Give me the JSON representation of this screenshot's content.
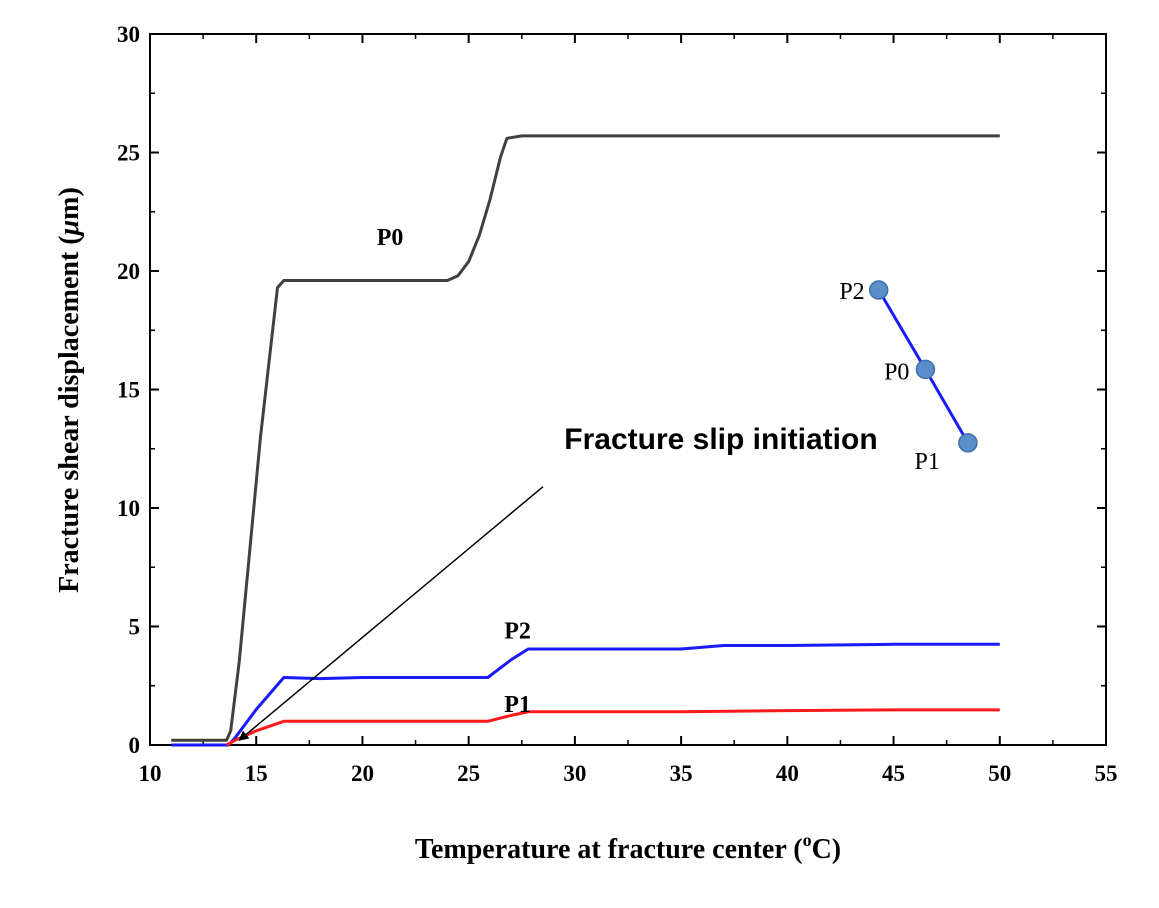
{
  "chart_data": {
    "type": "line",
    "title": "",
    "xlabel": "Temperature at fracture center (",
    "xlabel_sup": "o",
    "xlabel_tail": "C)",
    "ylabel_prefix": "Fracture shear displacement (",
    "ylabel_mu": "μ",
    "ylabel_suffix": "m)",
    "xlim": [
      10,
      55
    ],
    "ylim": [
      0,
      30
    ],
    "xticks": [
      "10",
      "15",
      "20",
      "25",
      "30",
      "35",
      "40",
      "45",
      "50",
      "55"
    ],
    "yticks": [
      "0",
      "5",
      "10",
      "15",
      "20",
      "25",
      "30"
    ],
    "grid": false,
    "series": [
      {
        "name": "P0",
        "color": "#404040",
        "x": [
          11,
          13.6,
          13.8,
          14.2,
          15.2,
          16.0,
          16.3,
          18,
          20,
          22,
          24,
          24.5,
          25,
          25.5,
          26,
          26.5,
          26.8,
          27.5,
          30,
          40,
          50
        ],
        "y": [
          0.2,
          0.2,
          0.6,
          3.5,
          13,
          19.3,
          19.6,
          19.6,
          19.6,
          19.6,
          19.6,
          19.8,
          20.4,
          21.5,
          23,
          24.8,
          25.6,
          25.7,
          25.7,
          25.7,
          25.7
        ]
      },
      {
        "name": "P2",
        "color": "#1a1aff",
        "x": [
          11,
          13.7,
          14.0,
          15,
          16.3,
          18,
          20,
          22,
          24,
          25.9,
          27,
          27.8,
          30,
          35,
          37,
          40,
          45,
          50
        ],
        "y": [
          0,
          0,
          0.3,
          1.5,
          2.85,
          2.8,
          2.85,
          2.85,
          2.85,
          2.85,
          3.6,
          4.05,
          4.05,
          4.05,
          4.2,
          4.2,
          4.25,
          4.25
        ]
      },
      {
        "name": "P1",
        "color": "#ff1a1a",
        "x": [
          13.6,
          14.0,
          15,
          16.3,
          18,
          20,
          22,
          24,
          25.9,
          27,
          27.8,
          30,
          35,
          40,
          45,
          50
        ],
        "y": [
          0,
          0.2,
          0.6,
          1.0,
          1.0,
          1.0,
          1.0,
          1.0,
          1.0,
          1.25,
          1.4,
          1.4,
          1.4,
          1.45,
          1.48,
          1.48
        ]
      }
    ],
    "series_labels": [
      {
        "text": "P0",
        "x": 21.3,
        "y": 21.1
      },
      {
        "text": "P2",
        "x": 27.3,
        "y": 4.5
      },
      {
        "text": "P1",
        "x": 27.3,
        "y": 1.4
      }
    ],
    "inset": {
      "line_color": "#1a1aff",
      "marker_color": "#5b8fc9",
      "points": [
        {
          "label": "P2",
          "x": 44.3,
          "y": 19.2
        },
        {
          "label": "P0",
          "x": 46.5,
          "y": 15.85
        },
        {
          "label": "P1",
          "x": 48.5,
          "y": 12.75
        }
      ]
    },
    "annotation": {
      "text": "Fracture slip initiation",
      "text_x": 29.5,
      "text_y": 12.5,
      "arrow_from": [
        28.5,
        10.9
      ],
      "arrow_to": [
        14.2,
        0.2
      ]
    }
  }
}
